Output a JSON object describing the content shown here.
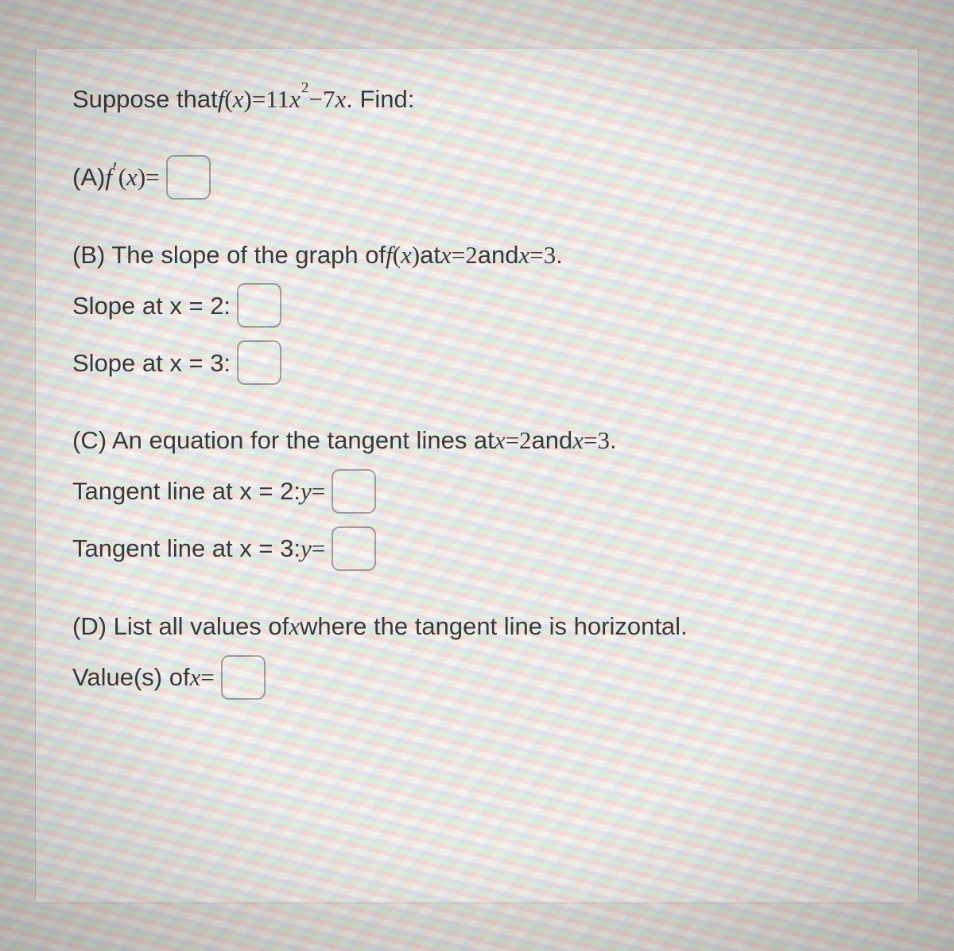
{
  "background_color": "#e8e4de",
  "card": {
    "bg": "rgba(253,252,248,0.55)",
    "border": "rgba(140,130,120,0.35)",
    "text_color": "#3b3b3b",
    "fontsize_body": 31,
    "font_body": "Arial, Helvetica, sans-serif",
    "font_math": "'Times New Roman', Times, serif"
  },
  "answer_box": {
    "width": 52,
    "height": 52,
    "border_color": "rgba(100,95,90,0.55)",
    "border_radius": 10
  },
  "intro": {
    "prefix": "Suppose that ",
    "func_lhs_f": "f",
    "func_lhs_paren_open": "(",
    "func_lhs_x": "x",
    "func_lhs_paren_close": ")",
    "eq": " = ",
    "coef1": "11",
    "x1": "x",
    "exp": "2",
    "minus": " − ",
    "coef2": "7",
    "x2": "x",
    "suffix": ". Find:"
  },
  "A": {
    "label": "(A) ",
    "f": "f",
    "prime": "′",
    "po": "(",
    "x": "x",
    "pc": ")",
    "eq": " ="
  },
  "B": {
    "heading_pre": "(B) The slope of the graph of ",
    "f": "f",
    "po": "(",
    "x": "x",
    "pc": ")",
    "at": " at ",
    "xv": "x",
    "eq1": " = ",
    "v1": "2",
    "and": " and ",
    "xv2": "x",
    "eq2": " = ",
    "v2": "3",
    "period": ".",
    "slope2": "Slope at x = 2:",
    "slope3": "Slope at x = 3:"
  },
  "C": {
    "heading_pre": "(C) An equation for the tangent lines at ",
    "xv": "x",
    "eq1": " = ",
    "v1": "2",
    "and": " and ",
    "xv2": "x",
    "eq2": " = ",
    "v2": "3",
    "period": ".",
    "t2_pre": "Tangent line at x = 2: ",
    "t2_y": "y",
    "t2_eq": " =",
    "t3_pre": "Tangent line at x = 3: ",
    "t3_y": "y",
    "t3_eq": " ="
  },
  "D": {
    "heading_pre": "(D) List all values of ",
    "x": "x",
    "heading_post": " where the tangent line is horizontal.",
    "val_pre": "Value(s) of ",
    "val_x": "x",
    "val_eq": " ="
  }
}
